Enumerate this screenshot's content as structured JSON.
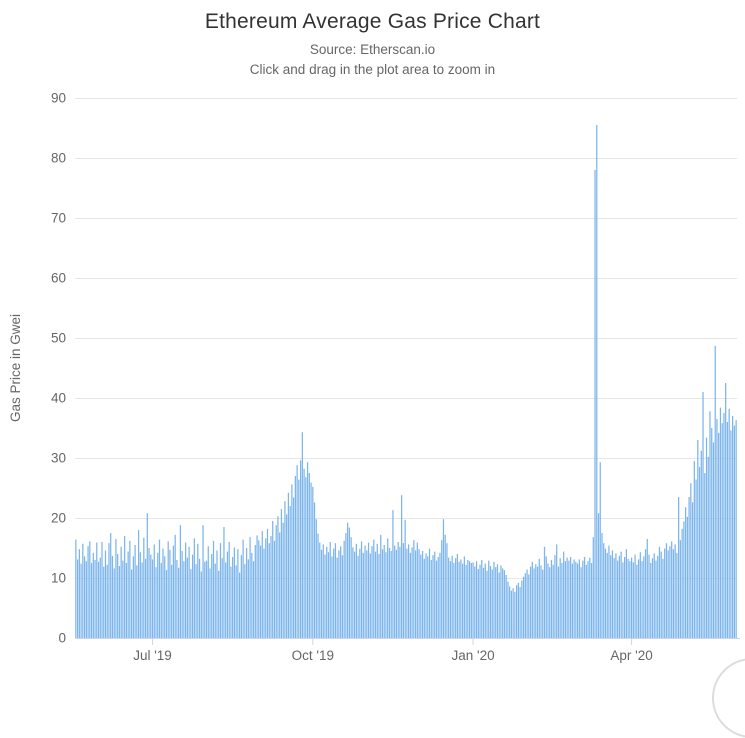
{
  "header": {
    "title": "Ethereum Average Gas Price Chart",
    "subtitle": "Source: Etherscan.io",
    "hint": "Click and drag in the plot area to zoom in"
  },
  "colors": {
    "bar": "#7cb5ec",
    "grid": "#e6e6e6",
    "axis_line": "#ccd6eb",
    "tick": "#ccd6eb",
    "label": "#666666",
    "title": "#333333",
    "background": "#ffffff"
  },
  "chart_data": {
    "type": "bar",
    "title": "Ethereum Average Gas Price Chart",
    "subtitle": "Source: Etherscan.io",
    "annotation": "Click and drag in the plot area to zoom in",
    "xlabel": "",
    "ylabel": "Gas Price in Gwei",
    "ylim": [
      0,
      90
    ],
    "y_ticks": [
      0,
      10,
      20,
      30,
      40,
      50,
      60,
      70,
      80,
      90
    ],
    "grid": true,
    "legend": false,
    "x_unit": "day",
    "x_ticks": [
      {
        "i": 44,
        "label": "Jul '19"
      },
      {
        "i": 136,
        "label": "Oct '19"
      },
      {
        "i": 228,
        "label": "Jan '20"
      },
      {
        "i": 319,
        "label": "Apr '20"
      }
    ],
    "values": [
      16.4,
      13.1,
      14.8,
      12.4,
      15.7,
      13.6,
      12.8,
      15.3,
      16.1,
      12.5,
      14.2,
      13.0,
      15.9,
      12.7,
      13.4,
      16.0,
      11.9,
      14.6,
      12.2,
      15.8,
      17.5,
      13.7,
      11.6,
      16.5,
      14.0,
      12.0,
      15.2,
      12.9,
      17.0,
      12.5,
      14.4,
      16.2,
      11.4,
      13.6,
      15.5,
      12.1,
      18.0,
      14.3,
      12.6,
      16.7,
      13.2,
      20.8,
      15.0,
      13.9,
      13.1,
      15.6,
      11.8,
      14.2,
      16.4,
      12.5,
      14.9,
      13.6,
      11.3,
      16.1,
      14.7,
      12.2,
      15.4,
      17.2,
      13.0,
      11.7,
      18.8,
      14.5,
      12.8,
      15.9,
      13.4,
      15.2,
      11.5,
      13.9,
      16.6,
      12.3,
      15.7,
      13.2,
      11.1,
      18.8,
      12.7,
      12.9,
      15.3,
      11.6,
      14.0,
      16.2,
      12.4,
      14.6,
      11.2,
      15.8,
      13.3,
      18.5,
      12.6,
      14.4,
      16.0,
      11.9,
      13.5,
      15.1,
      12.1,
      14.8,
      10.9,
      13.8,
      16.4,
      12.3,
      15.0,
      13.1,
      16.8,
      14.2,
      12.8,
      15.5,
      17.1,
      16.3,
      15.4,
      17.8,
      14.9,
      16.6,
      18.2,
      15.8,
      17.0,
      19.5,
      16.2,
      18.8,
      20.3,
      17.6,
      21.5,
      19.2,
      22.8,
      20.6,
      24.2,
      22.0,
      25.6,
      23.4,
      27.0,
      28.8,
      26.4,
      29.6,
      34.3,
      28.2,
      26.8,
      29.3,
      27.5,
      25.9,
      25.2,
      22.6,
      19.8,
      17.4,
      15.9,
      14.7,
      15.6,
      13.9,
      15.2,
      14.3,
      16.0,
      13.6,
      14.9,
      15.8,
      13.4,
      14.6,
      15.3,
      13.8,
      16.2,
      17.5,
      19.2,
      18.4,
      16.8,
      15.1,
      14.4,
      15.7,
      13.7,
      14.9,
      16.1,
      14.2,
      15.4,
      14.6,
      15.9,
      14.1,
      15.3,
      16.4,
      14.4,
      15.7,
      14.0,
      17.2,
      14.8,
      15.5,
      14.3,
      16.6,
      15.0,
      14.5,
      21.3,
      15.4,
      14.7,
      16.0,
      15.2,
      23.8,
      15.8,
      19.7,
      14.9,
      15.6,
      14.2,
      15.1,
      16.3,
      14.6,
      15.9,
      14.8,
      13.9,
      14.5,
      13.2,
      14.1,
      13.6,
      14.9,
      13.0,
      13.8,
      14.4,
      12.9,
      13.5,
      14.2,
      16.3,
      19.8,
      17.2,
      15.8,
      13.4,
      12.8,
      13.7,
      12.5,
      13.3,
      14.0,
      12.7,
      13.1,
      12.4,
      13.6,
      12.2,
      13.0,
      12.8,
      12.5,
      12.6,
      11.9,
      12.8,
      11.5,
      12.2,
      13.0,
      11.7,
      12.4,
      11.2,
      12.9,
      12.0,
      11.4,
      12.7,
      11.8,
      12.3,
      10.9,
      12.1,
      11.6,
      11.3,
      10.5,
      9.4,
      8.6,
      7.9,
      8.3,
      7.7,
      8.8,
      9.2,
      8.5,
      9.6,
      10.2,
      10.8,
      11.4,
      10.6,
      11.9,
      12.7,
      11.6,
      12.3,
      11.9,
      13.2,
      12.1,
      11.4,
      15.2,
      13.6,
      12.4,
      11.8,
      13.0,
      12.2,
      13.8,
      15.6,
      11.9,
      13.3,
      12.5,
      14.4,
      12.8,
      13.4,
      12.9,
      13.5,
      12.4,
      13.1,
      12.7,
      12.4,
      13.1,
      11.8,
      12.9,
      13.5,
      12.2,
      12.8,
      13.4,
      12.5,
      16.8,
      78.0,
      85.5,
      20.8,
      29.3,
      17.5,
      15.8,
      14.9,
      14.2,
      15.4,
      13.8,
      14.6,
      13.3,
      14.1,
      12.9,
      13.7,
      14.4,
      12.6,
      13.5,
      14.8,
      13.2,
      12.8,
      13.4,
      12.6,
      13.9,
      12.2,
      13.1,
      14.3,
      12.8,
      13.6,
      14.8,
      16.5,
      13.9,
      12.5,
      13.3,
      14.1,
      12.9,
      13.7,
      15.2,
      14.4,
      13.2,
      14.9,
      15.8,
      14.6,
      15.3,
      16.1,
      14.8,
      15.6,
      14.2,
      23.5,
      16.3,
      18.2,
      19.4,
      21.8,
      20.2,
      23.5,
      25.8,
      22.6,
      29.5,
      26.4,
      33.0,
      28.5,
      31.2,
      41.0,
      27.5,
      33.4,
      30.2,
      37.8,
      35.0,
      32.6,
      48.7,
      36.5,
      34.2,
      38.4,
      35.8,
      37.5,
      42.5,
      36.0,
      38.2,
      34.6,
      37.0,
      35.4,
      36.3
    ]
  }
}
